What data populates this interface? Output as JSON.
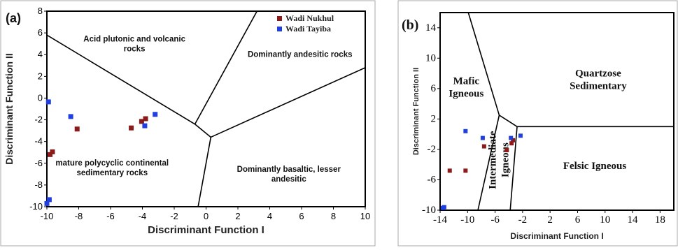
{
  "chart_data": [
    {
      "type": "scatter",
      "panel_label": "(a)",
      "xlabel": "Discriminant Function I",
      "ylabel": "Discriminant Function II",
      "xlim": [
        -10,
        10
      ],
      "ylim": [
        -10,
        8
      ],
      "xticks": [
        -10,
        -8,
        -6,
        -4,
        -2,
        0,
        2,
        4,
        6,
        8,
        10
      ],
      "yticks": [
        -10,
        -8,
        -6,
        -4,
        -2,
        0,
        2,
        4,
        6,
        8
      ],
      "legend_position": "top-right",
      "series": [
        {
          "name": "Wadi Nukhul",
          "color": "#8b1a1a",
          "points": [
            [
              -9.8,
              -5.2
            ],
            [
              -9.65,
              -4.95
            ],
            [
              -8.1,
              -2.85
            ],
            [
              -4.7,
              -2.75
            ],
            [
              -4.05,
              -2.15
            ],
            [
              -3.8,
              -1.9
            ]
          ]
        },
        {
          "name": "Wadi Tayiba",
          "color": "#1f3fe0",
          "points": [
            [
              -9.9,
              -0.35
            ],
            [
              -8.5,
              -1.7
            ],
            [
              -3.2,
              -1.5
            ],
            [
              -3.85,
              -2.55
            ],
            [
              -9.85,
              -9.35
            ],
            [
              -10.0,
              -9.7
            ]
          ]
        }
      ],
      "boundaries": [
        [
          [
            -10,
            5.8
          ],
          [
            -0.7,
            -2.4
          ]
        ],
        [
          [
            -0.7,
            -2.4
          ],
          [
            3.2,
            8
          ]
        ],
        [
          [
            -0.7,
            -2.4
          ],
          [
            0.3,
            -3.6
          ]
        ],
        [
          [
            0.3,
            -3.6
          ],
          [
            10,
            2.8
          ]
        ],
        [
          [
            0.3,
            -3.6
          ],
          [
            -0.5,
            -10
          ]
        ]
      ],
      "field_labels": [
        {
          "lines": [
            "Acid plutonic and volcanic",
            "rocks"
          ],
          "at": [
            -4.5,
            5.2
          ]
        },
        {
          "lines": [
            "Dominantly andesitic rocks"
          ],
          "at": [
            5.9,
            3.8
          ]
        },
        {
          "lines": [
            "mature polycyclic  continental",
            "sedimentary          rocks"
          ],
          "at": [
            -5.9,
            -6.2
          ]
        },
        {
          "lines": [
            "Dominantly basaltic, lesser",
            "andesitic"
          ],
          "at": [
            5.2,
            -6.8
          ]
        }
      ]
    },
    {
      "type": "scatter",
      "panel_label": "(b)",
      "xlabel": "Discriminant Function I",
      "ylabel": "Discriminant Function II",
      "xlim": [
        -14,
        20
      ],
      "ylim": [
        -10,
        16
      ],
      "xticks": [
        -14,
        -10,
        -6,
        -2,
        2,
        6,
        10,
        14,
        18
      ],
      "yticks": [
        -10,
        -6,
        -2,
        2,
        6,
        10,
        14
      ],
      "series": [
        {
          "name": "Wadi Nukhul",
          "color": "#8b1a1a",
          "points": [
            [
              -12.6,
              -4.8
            ],
            [
              -10.3,
              -4.8
            ],
            [
              -7.6,
              -1.6
            ],
            [
              -4.3,
              -2.1
            ],
            [
              -3.6,
              -1.2
            ],
            [
              -3.4,
              -0.8
            ]
          ]
        },
        {
          "name": "Wadi Tayiba",
          "color": "#1f3fe0",
          "points": [
            [
              -10.3,
              0.4
            ],
            [
              -7.8,
              -0.5
            ],
            [
              -3.7,
              -0.5
            ],
            [
              -2.3,
              -0.2
            ],
            [
              -13.4,
              -9.6
            ],
            [
              -13.6,
              -9.7
            ]
          ]
        }
      ],
      "boundaries": [
        [
          [
            -9.9,
            16
          ],
          [
            -5.4,
            2.5
          ]
        ],
        [
          [
            -5.4,
            2.5
          ],
          [
            -8.5,
            -10
          ]
        ],
        [
          [
            -5.4,
            2.5
          ],
          [
            -2.8,
            1.0
          ]
        ],
        [
          [
            -2.8,
            1.0
          ],
          [
            -3.8,
            -10
          ]
        ],
        [
          [
            -2.8,
            1.0
          ],
          [
            20,
            1.0
          ]
        ]
      ],
      "field_labels": [
        {
          "lines": [
            "Mafic",
            "Igneous"
          ],
          "at": [
            -10.2,
            6.6
          ]
        },
        {
          "lines": [
            "Quartzose",
            "Sedimentary"
          ],
          "at": [
            9.0,
            7.6
          ]
        },
        {
          "lines": [
            "Felsic Igneous"
          ],
          "at": [
            8.5,
            -4.6
          ]
        }
      ],
      "rotated_labels": [
        {
          "lines": [
            "Intermediate",
            "Igneous"
          ],
          "at": [
            -5.0,
            -3.4
          ]
        }
      ]
    }
  ]
}
